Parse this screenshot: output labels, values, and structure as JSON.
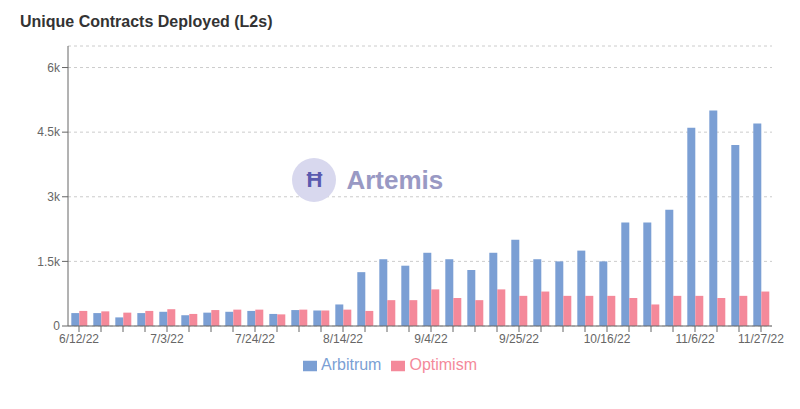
{
  "chart_data": {
    "type": "bar",
    "title": "Unique Contracts Deployed (L2s)",
    "categories": [
      "6/12/22",
      null,
      null,
      null,
      "7/3/22",
      null,
      null,
      null,
      "7/24/22",
      null,
      null,
      null,
      "8/14/22",
      null,
      null,
      null,
      "9/4/22",
      null,
      null,
      null,
      "9/25/22",
      null,
      null,
      null,
      "10/16/22",
      null,
      null,
      null,
      "11/6/22",
      null,
      null,
      "11/27/22"
    ],
    "series": [
      {
        "name": "Arbitrum",
        "color": "#7b9fd4",
        "values": [
          300,
          300,
          200,
          300,
          330,
          250,
          310,
          330,
          350,
          280,
          370,
          360,
          500,
          1250,
          1550,
          1400,
          1700,
          1550,
          1300,
          1700,
          2000,
          1550,
          1500,
          1750,
          1500,
          2400,
          2400,
          2700,
          4600,
          5000,
          4200,
          4700
        ]
      },
      {
        "name": "Optimism",
        "color": "#f4899a",
        "values": [
          350,
          340,
          310,
          350,
          390,
          280,
          370,
          380,
          380,
          270,
          380,
          360,
          380,
          350,
          600,
          600,
          850,
          650,
          600,
          850,
          700,
          800,
          700,
          700,
          700,
          650,
          500,
          700,
          700,
          650,
          700,
          800
        ]
      }
    ],
    "ylim": [
      0,
      6500
    ],
    "yticks": [
      0,
      {
        "value": 1500,
        "label": "1.5k"
      },
      {
        "value": 3000,
        "label": "3k"
      },
      {
        "value": 4500,
        "label": "4.5k"
      },
      {
        "value": 6000,
        "label": "6k"
      }
    ],
    "grid": true,
    "legend": "bottom",
    "annotations": [
      "Ħ",
      "Artemis"
    ]
  }
}
